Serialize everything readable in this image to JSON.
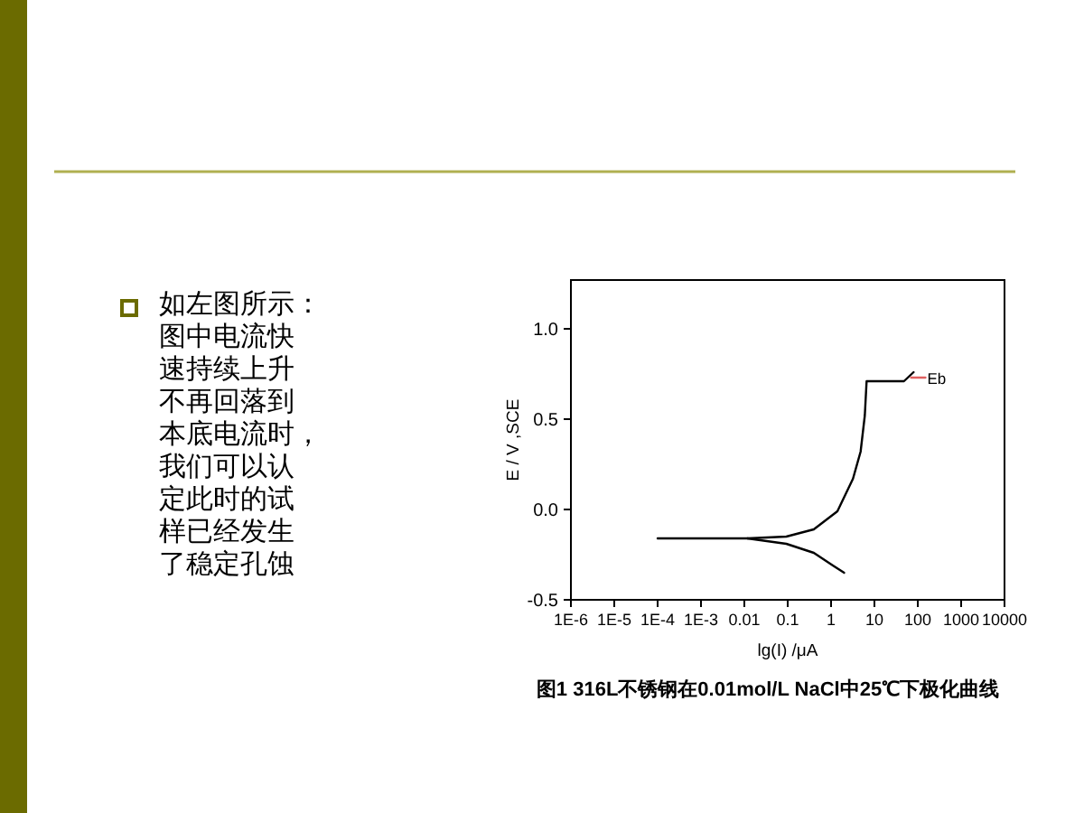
{
  "chart_data": {
    "type": "line",
    "xlabel": "lg(I) /μA",
    "ylabel": "E / V ,SCE",
    "log": "x",
    "xlim": [
      1e-06,
      10000
    ],
    "ylim": [
      -0.5,
      1.27
    ],
    "xticks": [
      {
        "value": 1e-06,
        "label": "1E-6"
      },
      {
        "value": 1e-05,
        "label": "1E-5"
      },
      {
        "value": 0.0001,
        "label": "1E-4"
      },
      {
        "value": 0.001,
        "label": "1E-3"
      },
      0.01,
      0.1,
      1,
      10,
      100,
      1000,
      10000
    ],
    "yticks": [
      {
        "value": -0.5,
        "label": "-0.5"
      },
      {
        "value": 0,
        "label": "0.0"
      },
      {
        "value": 0.5,
        "label": "0.5"
      },
      {
        "value": 1,
        "label": "1.0"
      }
    ],
    "series": [
      {
        "color": "#000000",
        "x": [
          0.0001,
          0.0117,
          0.093,
          0.4,
          1.4,
          3.2,
          4.8,
          6,
          6.6,
          20,
          48,
          80
        ],
        "values": [
          -0.16,
          -0.16,
          -0.15,
          -0.11,
          -0.01,
          0.17,
          0.32,
          0.52,
          0.71,
          0.71,
          0.71,
          0.76
        ]
      },
      {
        "color": "#000000",
        "x": [
          0.0117,
          0.093,
          0.4,
          1.1,
          2
        ],
        "values": [
          -0.16,
          -0.19,
          -0.24,
          -0.31,
          -0.35
        ]
      },
      {
        "color": "#e06060",
        "x": [
          70,
          150
        ],
        "values": [
          0.73,
          0.73
        ]
      }
    ],
    "annotations": [
      "Eb",
      "图1 316L不锈钢在0.01mol/L NaCl中25℃下极化曲线",
      "如左图所示：",
      "图中电流快",
      "速持续上升",
      "不再回落到",
      "本底电流时，",
      "我们可以认",
      "定此时的试",
      "样已经发生",
      "了稳定孔蚀"
    ]
  }
}
